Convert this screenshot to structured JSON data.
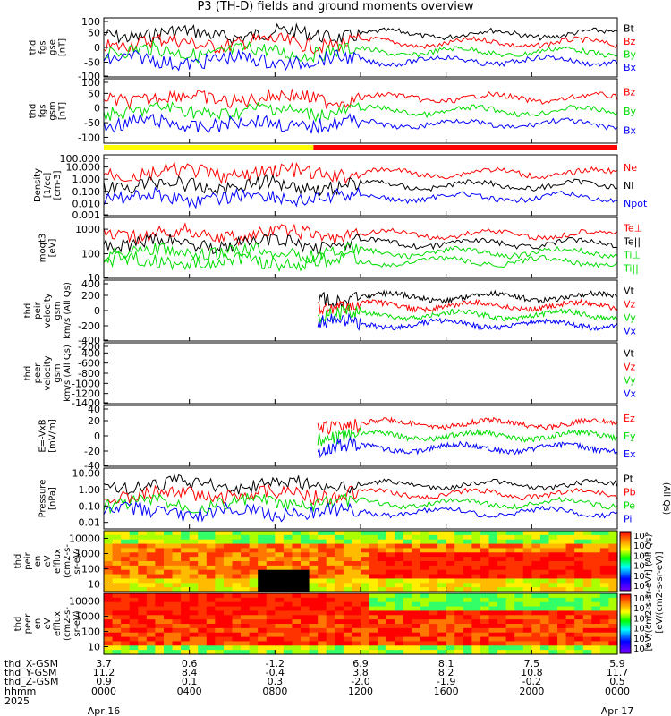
{
  "title": "P3 (TH-D) fields and ground moments overview",
  "colors": {
    "black": "#000000",
    "red": "#ff0000",
    "green": "#00dd00",
    "blue": "#0000ff",
    "yellow": "#ffff00"
  },
  "chart_data": {
    "type": "line",
    "x_unit": "hhmm",
    "x_range": [
      "0000 Apr 16 2025",
      "0000 Apr 17 2025"
    ],
    "ephemeris": {
      "row_labels": [
        "thd_X-GSM",
        "thd_Y-GSM",
        "thd_Z-GSM",
        "hhmm",
        "2025"
      ],
      "columns": [
        {
          "x": "3.7",
          "y": "11.2",
          "z": "0.9",
          "t": "0000",
          "d": "Apr 16"
        },
        {
          "x": "0.6",
          "y": "8.4",
          "z": "0.1",
          "t": "0400",
          "d": ""
        },
        {
          "x": "-1.2",
          "y": "-0.4",
          "z": "0.3",
          "t": "0800",
          "d": ""
        },
        {
          "x": "6.9",
          "y": "3.8",
          "z": "-2.0",
          "t": "1200",
          "d": ""
        },
        {
          "x": "8.1",
          "y": "8.2",
          "z": "-1.9",
          "t": "1600",
          "d": ""
        },
        {
          "x": "7.5",
          "y": "10.8",
          "z": "-0.2",
          "t": "2000",
          "d": ""
        },
        {
          "x": "5.9",
          "y": "11.7",
          "z": "0.5",
          "t": "0000",
          "d": "Apr 17"
        }
      ]
    },
    "mode_bar": {
      "segments": [
        {
          "color": "yellow",
          "to_hour": 9.8
        },
        {
          "color": "red",
          "to_hour": 24
        }
      ]
    },
    "panels": [
      {
        "id": "fgs-gse",
        "ylabel": [
          "thd",
          "fgs",
          "gse",
          "[nT]"
        ],
        "ticks": [
          "100",
          "50",
          "0",
          "-50",
          "-100"
        ],
        "scale": "linear",
        "range": [
          -100,
          100
        ],
        "legend": [
          {
            "text": "Bt",
            "color": "black"
          },
          {
            "text": "Bz",
            "color": "red"
          },
          {
            "text": "By",
            "color": "green"
          },
          {
            "text": "Bx",
            "color": "blue"
          }
        ]
      },
      {
        "id": "fgs-gsm",
        "ylabel": [
          "thd",
          "fgs",
          "gsm",
          "[nT]"
        ],
        "ticks": [
          "100",
          "50",
          "0",
          "-50",
          "-100"
        ],
        "scale": "linear",
        "range": [
          -120,
          100
        ],
        "legend": [
          {
            "text": "Bz",
            "color": "red"
          },
          {
            "text": "By",
            "color": "green"
          },
          {
            "text": "Bx",
            "color": "blue"
          }
        ]
      },
      {
        "id": "density",
        "ylabel": [
          "Density",
          "[1/cc]",
          "[cm-3]"
        ],
        "ticks": [
          "100.000",
          "10.000",
          "1.000",
          "0.100",
          "0.010",
          "0.001"
        ],
        "scale": "log",
        "range": [
          0.001,
          100
        ],
        "legend": [
          {
            "text": "Ne",
            "color": "red"
          },
          {
            "text": "Ni",
            "color": "black"
          },
          {
            "text": "Npot",
            "color": "blue"
          }
        ]
      },
      {
        "id": "temp",
        "ylabel": [
          "moqt3",
          "[eV]"
        ],
        "ticks": [
          "1000",
          "100",
          "10"
        ],
        "scale": "log",
        "range": [
          10,
          3000
        ],
        "legend": [
          {
            "text": "Te⊥",
            "color": "red"
          },
          {
            "text": "Te||",
            "color": "black"
          },
          {
            "text": "Ti⊥",
            "color": "green"
          },
          {
            "text": "Ti||",
            "color": "green"
          }
        ]
      },
      {
        "id": "peir-vel",
        "ylabel": [
          "thd",
          "peir",
          "velocity",
          "gsm",
          "km/s (All Qs)"
        ],
        "ticks": [
          "400",
          "200",
          "0",
          "-200",
          "-400"
        ],
        "scale": "linear",
        "range": [
          -400,
          400
        ],
        "legend": [
          {
            "text": "Vt",
            "color": "black"
          },
          {
            "text": "Vz",
            "color": "red"
          },
          {
            "text": "Vy",
            "color": "green"
          },
          {
            "text": "Vx",
            "color": "blue"
          }
        ]
      },
      {
        "id": "peer-vel",
        "ylabel": [
          "thd",
          "peer",
          "velocity",
          "gsm",
          "km/s (All Qs)"
        ],
        "ticks": [
          "-200",
          "-400",
          "-600",
          "-800",
          "-1000",
          "-1200",
          "-1400"
        ],
        "scale": "linear",
        "range": [
          -1400,
          -200
        ],
        "legend": [
          {
            "text": "Vt",
            "color": "black"
          },
          {
            "text": "Vz",
            "color": "red"
          },
          {
            "text": "Vy",
            "color": "green"
          },
          {
            "text": "Vx",
            "color": "blue"
          }
        ]
      },
      {
        "id": "efield",
        "ylabel": [
          "E=-VxB",
          "[mV/m]"
        ],
        "ticks": [
          "40",
          "20",
          "0",
          "-20",
          "-40"
        ],
        "scale": "linear",
        "range": [
          -40,
          40
        ],
        "legend": [
          {
            "text": "Ez",
            "color": "red"
          },
          {
            "text": "Ey",
            "color": "green"
          },
          {
            "text": "Ex",
            "color": "blue"
          }
        ]
      },
      {
        "id": "pressure",
        "ylabel": [
          "Pressure",
          "[nPa]"
        ],
        "ticks": [
          "10.00",
          "1.00",
          "0.10",
          "0.01"
        ],
        "scale": "log",
        "range": [
          0.004,
          20
        ],
        "legend": [
          {
            "text": "Pt",
            "color": "black"
          },
          {
            "text": "Pb",
            "color": "red"
          },
          {
            "text": "Pe",
            "color": "green"
          },
          {
            "text": "Pi",
            "color": "blue"
          }
        ],
        "side_note": "(All Qs)"
      },
      {
        "id": "peir-spec",
        "ylabel": [
          "thd",
          "peir",
          "en",
          "eV",
          "efflux",
          "(cm2-s-",
          "sr-eV)"
        ],
        "ticks": [
          "10000",
          "1000",
          "100",
          "10"
        ],
        "scale": "log",
        "range": [
          5,
          25000
        ]
      },
      {
        "id": "peer-spec",
        "ylabel": [
          "thd",
          "peer",
          "en",
          "eV",
          "efflux",
          "(cm2-s-",
          "sr-eV)"
        ],
        "ticks": [
          "10000",
          "1000",
          "100",
          "10"
        ],
        "scale": "log",
        "range": [
          5,
          25000
        ]
      }
    ],
    "colorbar": {
      "ticks": [
        "10⁸",
        "10⁷",
        "10⁶",
        "10⁵",
        "10⁴",
        "10³"
      ],
      "label": "[eV/(cm2-s-sr-eV)]",
      "overlay_label": "[eV/(cm2-s-sr-eV)] (All Qs)"
    }
  }
}
